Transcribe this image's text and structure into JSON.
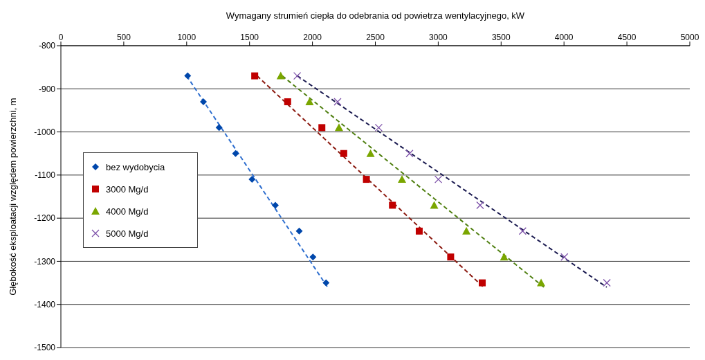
{
  "chart_data": {
    "type": "scatter",
    "xlabel": "Wymagany strumień ciepła do odebrania od powietrza wentylacyjnego, kW",
    "ylabel": "Głębokość eksploatacji względem powierzchni, m",
    "xlim": [
      0,
      5000
    ],
    "xticks": [
      0,
      500,
      1000,
      1500,
      2000,
      2500,
      3000,
      3500,
      4000,
      4500,
      5000
    ],
    "ylim": [
      -1500,
      -800
    ],
    "yticks": [
      -1500,
      -1400,
      -1300,
      -1200,
      -1100,
      -1000,
      -900,
      -800
    ],
    "grid": "y",
    "legend": "left",
    "series": [
      {
        "name": "bez wydobycia",
        "color": "#0047ab",
        "marker": "diamond",
        "x": [
          1008,
          1133,
          1258,
          1389,
          1520,
          1705,
          1895,
          2004,
          2108
        ],
        "values": [
          -870,
          -930,
          -990,
          -1050,
          -1110,
          -1170,
          -1230,
          -1290,
          -1350
        ]
      },
      {
        "name": "3000 Mg/d",
        "color": "#c00000",
        "marker": "square",
        "x": [
          1541,
          1803,
          2075,
          2249,
          2429,
          2636,
          2849,
          3099,
          3350
        ],
        "values": [
          -870,
          -930,
          -990,
          -1050,
          -1110,
          -1170,
          -1230,
          -1290,
          -1350
        ]
      },
      {
        "name": "4000 Mg/d",
        "color": "#7aa600",
        "marker": "triangle",
        "x": [
          1748,
          1977,
          2211,
          2462,
          2712,
          2968,
          3224,
          3524,
          3818
        ],
        "values": [
          -870,
          -930,
          -990,
          -1050,
          -1110,
          -1170,
          -1230,
          -1290,
          -1350
        ]
      },
      {
        "name": "5000 Mg/d",
        "color": "#7b4fa8",
        "marker": "cross",
        "x": [
          1879,
          2200,
          2527,
          2772,
          3001,
          3333,
          3671,
          4003,
          4341
        ],
        "values": [
          -870,
          -930,
          -990,
          -1050,
          -1110,
          -1170,
          -1230,
          -1290,
          -1350
        ]
      },
      {
        "type": "line",
        "color": "#2f6fcf",
        "line_style": "dashed",
        "marker": "none",
        "x": [
          1000,
          2120
        ],
        "values": [
          -870,
          -1360
        ]
      },
      {
        "type": "line",
        "color": "#8b1a10",
        "line_style": "dashed",
        "marker": "none",
        "x": [
          1560,
          3360
        ],
        "values": [
          -870,
          -1360
        ]
      },
      {
        "type": "line",
        "color": "#4f7f10",
        "line_style": "dashed",
        "marker": "none",
        "x": [
          1760,
          3840
        ],
        "values": [
          -870,
          -1360
        ]
      },
      {
        "type": "line",
        "color": "#1a1a50",
        "line_style": "dashed",
        "marker": "none",
        "x": [
          1880,
          4340
        ],
        "values": [
          -870,
          -1360
        ]
      }
    ]
  }
}
